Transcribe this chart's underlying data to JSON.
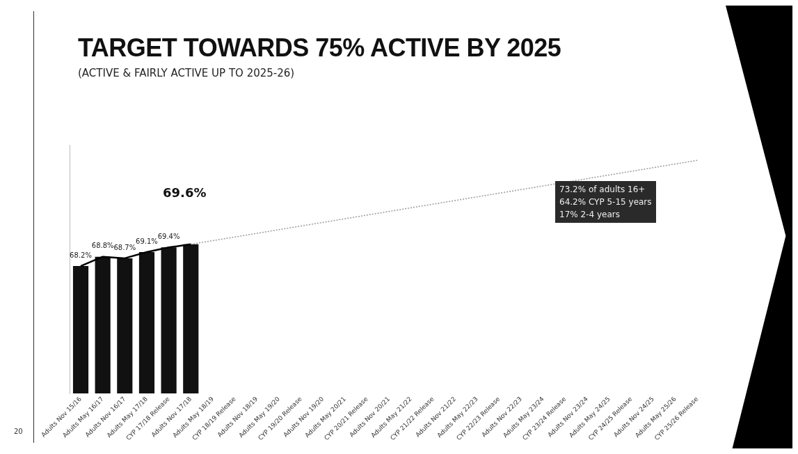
{
  "chart_data": {
    "type": "bar",
    "title": "TARGET TOWARDS 75% ACTIVE BY 2025",
    "subtitle": "(ACTIVE & FAIRLY ACTIVE UP TO 2025-26)",
    "categories": [
      "Adults Nov 15/16",
      "Adults May 16/17",
      "Adults Nov 16/17",
      "Adults May 17/18",
      "CYP 17/18 Release",
      "Adults Nov 17/18",
      "Adults May 18/19",
      "CYP 18/19 Release",
      "Adults Nov 18/19",
      "Adults May 19/20",
      "CYP 19/20 Release",
      "Adults Nov 19/20",
      "Adults May 20/21",
      "CYP 20/21 Release",
      "Adults Nov 20/21",
      "Adults May 21/22",
      "CYP 21/22 Release",
      "Adults Nov 21/22",
      "Adults May 22/23",
      "CYP 22/23 Release",
      "Adults Nov 22/23",
      "Adults May 23/24",
      "CYP 23/24 Release",
      "Adults Nov 23/24",
      "Adults May 24/25",
      "CYP 24/25 Release",
      "Adults Nov 24/25",
      "Adults May 25/26",
      "CYP 25/26 Release"
    ],
    "series": [
      {
        "color": "#111111",
        "values": [
          68.2,
          68.8,
          68.7,
          69.1,
          69.4,
          69.6,
          null,
          null,
          null,
          null,
          null,
          null,
          null,
          null,
          null,
          null,
          null,
          null,
          null,
          null,
          null,
          null,
          null,
          null,
          null,
          null,
          null,
          null,
          null
        ],
        "value_labels": [
          "68.2%",
          "68.8%",
          "68.7%",
          "69.1%",
          "69.4%",
          null,
          null,
          null,
          null,
          null,
          null,
          null,
          null,
          null,
          null,
          null,
          null,
          null,
          null,
          null,
          null,
          null,
          null,
          null,
          null,
          null,
          null,
          null,
          null
        ]
      },
      {
        "type": "line",
        "color": "#000000",
        "line_style": "solid",
        "values": [
          68.2,
          68.8,
          68.7,
          69.1,
          69.4,
          69.6,
          null,
          null,
          null,
          null,
          null,
          null,
          null,
          null,
          null,
          null,
          null,
          null,
          null,
          null,
          null,
          null,
          null,
          null,
          null,
          null,
          null,
          null,
          null
        ]
      },
      {
        "type": "line",
        "color": "#9a9a9a",
        "line_style": "dotted",
        "x": [
          "Adults Nov 17/18",
          "CYP 25/26 Release"
        ],
        "values": [
          69.6,
          75
        ]
      }
    ],
    "ylim": [
      60,
      76
    ],
    "tick_labels": "x",
    "grid": false,
    "legend": false,
    "marker": "none",
    "annotations": [
      "73.2% of adults 16+",
      "64.2% CYP 5-15 years",
      "17% 2-4 years",
      "20",
      "69.6%"
    ]
  }
}
